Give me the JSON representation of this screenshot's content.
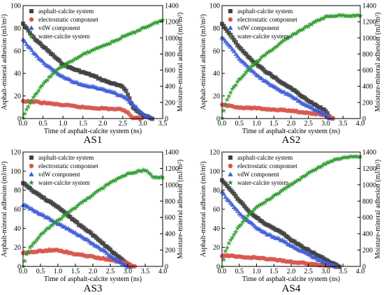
{
  "chart_data": [
    {
      "type": "scatter",
      "title": "AS1",
      "xlabel": "Time of asphalt-calcite system (ns)",
      "ylabel": "Asphalt-mineral adhesion (mJ/m²)",
      "y2label": "Moisture-mineral adhesion (mJ/m²)",
      "xlim": [
        0,
        3.5
      ],
      "ylim": [
        0,
        100
      ],
      "y2lim": [
        0,
        1400
      ],
      "xticks": [
        "0.0",
        "0.5",
        "1.0",
        "1.5",
        "2.0",
        "2.5",
        "3.0",
        "3.5"
      ],
      "yticks": [
        "0",
        "20",
        "40",
        "60",
        "80",
        "100"
      ],
      "y2ticks": [
        "0",
        "200",
        "400",
        "600",
        "800",
        "1000",
        "1200",
        "1400"
      ],
      "legend_position": "top-left",
      "series": [
        {
          "name": "asphalt-calcite system",
          "axis": "left",
          "color": "#404040",
          "marker": "square",
          "x": [
            0,
            0.25,
            0.5,
            0.75,
            1.0,
            1.25,
            1.5,
            1.75,
            2.0,
            2.25,
            2.5,
            2.6,
            2.75,
            3.0,
            3.25
          ],
          "y": [
            84,
            72,
            64,
            56,
            48,
            44,
            41,
            38,
            34,
            31,
            28,
            24,
            10,
            3,
            0
          ]
        },
        {
          "name": "electrostatic componnet",
          "axis": "left",
          "color": "#d9564c",
          "marker": "circle",
          "x": [
            0,
            0.25,
            0.5,
            1.0,
            1.5,
            2.0,
            2.5,
            2.6,
            2.75,
            3.0
          ],
          "y": [
            15,
            15,
            14,
            12,
            10,
            9,
            8,
            6,
            1,
            0
          ]
        },
        {
          "name": "vdW component",
          "axis": "left",
          "color": "#3a5bd9",
          "marker": "triangle",
          "x": [
            0,
            0.25,
            0.5,
            0.75,
            1.0,
            1.25,
            1.5,
            1.75,
            2.0,
            2.25,
            2.5,
            2.75,
            3.0,
            3.2
          ],
          "y": [
            70,
            59,
            50,
            43,
            37,
            33,
            30,
            28,
            26,
            23,
            20,
            13,
            4,
            0
          ]
        },
        {
          "name": "water-calcite system",
          "axis": "right",
          "color": "#2a9a2a",
          "marker": "star",
          "x": [
            0,
            0.1,
            0.25,
            0.5,
            0.75,
            1.0,
            1.25,
            1.5,
            1.75,
            2.0,
            2.25,
            2.5,
            2.75,
            3.0,
            3.25,
            3.5
          ],
          "y": [
            0,
            120,
            260,
            420,
            560,
            650,
            720,
            790,
            850,
            900,
            950,
            1010,
            1060,
            1120,
            1170,
            1220
          ]
        }
      ]
    },
    {
      "type": "scatter",
      "title": "AS2",
      "xlabel": "Time of asphalt-calcite system (ns)",
      "ylabel": "Asphalt-mineral adhesion (mJ/m²)",
      "y2label": "Moisture-mineral adhesion (mJ/m²)",
      "xlim": [
        0,
        4.0
      ],
      "ylim": [
        0,
        100
      ],
      "y2lim": [
        0,
        1400
      ],
      "xticks": [
        "0.0",
        "0.5",
        "1.0",
        "1.5",
        "2.0",
        "2.5",
        "3.0",
        "3.5",
        "4.0"
      ],
      "yticks": [
        "0",
        "20",
        "40",
        "60",
        "80",
        "100"
      ],
      "y2ticks": [
        "0",
        "200",
        "400",
        "600",
        "800",
        "1000",
        "1200",
        "1400"
      ],
      "legend_position": "top-left",
      "series": [
        {
          "name": "asphalt-calcite system",
          "axis": "left",
          "color": "#404040",
          "marker": "square",
          "x": [
            0,
            0.25,
            0.5,
            0.75,
            1.0,
            1.25,
            1.5,
            1.75,
            2.0,
            2.25,
            2.5,
            2.75,
            3.0,
            3.1,
            3.2
          ],
          "y": [
            84,
            74,
            63,
            55,
            48,
            42,
            37,
            31,
            27,
            21,
            16,
            11,
            7,
            2,
            0
          ]
        },
        {
          "name": "electrostatic componnet",
          "axis": "left",
          "color": "#d9564c",
          "marker": "circle",
          "x": [
            0,
            0.25,
            0.5,
            1.0,
            1.5,
            2.0,
            2.5,
            3.0,
            3.2
          ],
          "y": [
            12,
            11,
            10,
            9,
            8,
            7,
            5,
            3,
            0
          ]
        },
        {
          "name": "vdW component",
          "axis": "left",
          "color": "#3a5bd9",
          "marker": "triangle",
          "x": [
            0,
            0.25,
            0.5,
            0.75,
            1.0,
            1.25,
            1.5,
            1.75,
            2.0,
            2.25,
            2.5,
            2.75,
            3.0,
            3.1
          ],
          "y": [
            72,
            63,
            53,
            46,
            39,
            33,
            28,
            24,
            20,
            15,
            11,
            7,
            4,
            0
          ]
        },
        {
          "name": "water-calcite system",
          "axis": "right",
          "color": "#2a9a2a",
          "marker": "star",
          "x": [
            0,
            0.1,
            0.25,
            0.5,
            0.75,
            1.0,
            1.25,
            1.5,
            1.75,
            2.0,
            2.25,
            2.5,
            2.75,
            3.0,
            3.25,
            3.5,
            3.75,
            4.0
          ],
          "y": [
            0,
            180,
            330,
            480,
            600,
            700,
            790,
            870,
            950,
            1020,
            1090,
            1150,
            1210,
            1260,
            1275,
            1280,
            1275,
            1275
          ]
        }
      ]
    },
    {
      "type": "scatter",
      "title": "AS3",
      "xlabel": "Time of asphalt-calcite system (ns)",
      "ylabel": "Asphalt-mineral adhesion (mJ/m²)",
      "y2label": "Moisture-mineral adhesion (mJ/m²)",
      "xlim": [
        0,
        4.0
      ],
      "ylim": [
        0,
        120
      ],
      "y2lim": [
        0,
        1400
      ],
      "xticks": [
        "0.0",
        "0.5",
        "1.0",
        "1.5",
        "2.0",
        "2.5",
        "3.0",
        "3.5",
        "4.0"
      ],
      "yticks": [
        "0",
        "20",
        "40",
        "60",
        "80",
        "100",
        "120"
      ],
      "y2ticks": [
        "0",
        "200",
        "400",
        "600",
        "800",
        "1000",
        "1200",
        "1400"
      ],
      "legend_position": "top-left",
      "series": [
        {
          "name": "asphalt-calcite system",
          "axis": "left",
          "color": "#404040",
          "marker": "square",
          "x": [
            0,
            0.25,
            0.5,
            0.75,
            1.0,
            1.25,
            1.5,
            1.75,
            2.0,
            2.25,
            2.5,
            2.75,
            3.0,
            3.1
          ],
          "y": [
            88,
            80,
            74,
            68,
            62,
            55,
            47,
            40,
            33,
            25,
            17,
            10,
            3,
            0
          ]
        },
        {
          "name": "electrostatic componnet",
          "axis": "left",
          "color": "#d9564c",
          "marker": "circle",
          "x": [
            0,
            0.25,
            0.5,
            0.75,
            1.0,
            1.25,
            1.5,
            2.0,
            2.5,
            3.0,
            3.2
          ],
          "y": [
            14,
            15,
            16,
            17,
            17,
            15,
            13,
            10,
            7,
            3,
            0
          ]
        },
        {
          "name": "vdW component",
          "axis": "left",
          "color": "#3a5bd9",
          "marker": "triangle",
          "x": [
            0,
            0.25,
            0.5,
            0.75,
            1.0,
            1.25,
            1.5,
            1.75,
            2.0,
            2.25,
            2.5,
            2.75,
            3.0
          ],
          "y": [
            65,
            60,
            55,
            50,
            45,
            40,
            35,
            30,
            24,
            18,
            11,
            5,
            0
          ]
        },
        {
          "name": "water-calcite system",
          "axis": "right",
          "color": "#2a9a2a",
          "marker": "star",
          "x": [
            0,
            0.1,
            0.25,
            0.5,
            0.75,
            1.0,
            1.25,
            1.5,
            1.75,
            2.0,
            2.25,
            2.5,
            2.75,
            3.0,
            3.25,
            3.5,
            3.75,
            4.0
          ],
          "y": [
            0,
            150,
            260,
            380,
            480,
            560,
            640,
            720,
            800,
            880,
            950,
            1020,
            1080,
            1130,
            1160,
            1180,
            1090,
            1090
          ]
        }
      ]
    },
    {
      "type": "scatter",
      "title": "AS4",
      "xlabel": "Time of asphalt-calcite system (ns)",
      "ylabel": "Asphalt-mineral adhesion (mJ/m²)",
      "y2label": "Moisture-mineral adhesion (mJ/m²)",
      "xlim": [
        0,
        4.0
      ],
      "ylim": [
        0,
        120
      ],
      "y2lim": [
        0,
        1400
      ],
      "xticks": [
        "0.0",
        "0.5",
        "1.0",
        "1.5",
        "2.0",
        "2.5",
        "3.0",
        "3.5",
        "4.0"
      ],
      "yticks": [
        "0",
        "20",
        "40",
        "60",
        "80",
        "100",
        "120"
      ],
      "y2ticks": [
        "0",
        "200",
        "400",
        "600",
        "800",
        "1000",
        "1200",
        "1400"
      ],
      "legend_position": "top-left",
      "series": [
        {
          "name": "asphalt-calcite system",
          "axis": "left",
          "color": "#404040",
          "marker": "square",
          "x": [
            0,
            0.25,
            0.5,
            0.75,
            1.0,
            1.25,
            1.5,
            1.75,
            2.0,
            2.25,
            2.5,
            2.75,
            3.0,
            3.2,
            3.4
          ],
          "y": [
            90,
            80,
            69,
            59,
            51,
            45,
            40,
            35,
            28,
            22,
            17,
            12,
            7,
            3,
            0
          ]
        },
        {
          "name": "electrostatic componnet",
          "axis": "left",
          "color": "#d9564c",
          "marker": "circle",
          "x": [
            0,
            0.25,
            0.5,
            1.0,
            1.5,
            2.0,
            2.5,
            3.0,
            3.3
          ],
          "y": [
            11,
            11,
            10,
            9,
            7,
            5,
            3,
            1,
            0
          ]
        },
        {
          "name": "vdW component",
          "axis": "left",
          "color": "#3a5bd9",
          "marker": "triangle",
          "x": [
            0,
            0.25,
            0.5,
            0.75,
            1.0,
            1.25,
            1.5,
            1.75,
            2.0,
            2.25,
            2.5,
            2.75,
            3.0,
            3.3
          ],
          "y": [
            78,
            66,
            56,
            48,
            41,
            35,
            31,
            27,
            22,
            17,
            13,
            8,
            4,
            0
          ]
        },
        {
          "name": "water-calcite system",
          "axis": "right",
          "color": "#2a9a2a",
          "marker": "star",
          "x": [
            0,
            0.1,
            0.25,
            0.5,
            0.75,
            1.0,
            1.25,
            1.5,
            1.75,
            2.0,
            2.25,
            2.5,
            2.75,
            3.0,
            3.25,
            3.5,
            3.75,
            4.0
          ],
          "y": [
            0,
            180,
            330,
            490,
            620,
            720,
            790,
            860,
            930,
            1000,
            1070,
            1140,
            1200,
            1260,
            1300,
            1330,
            1340,
            1350
          ]
        }
      ]
    }
  ]
}
